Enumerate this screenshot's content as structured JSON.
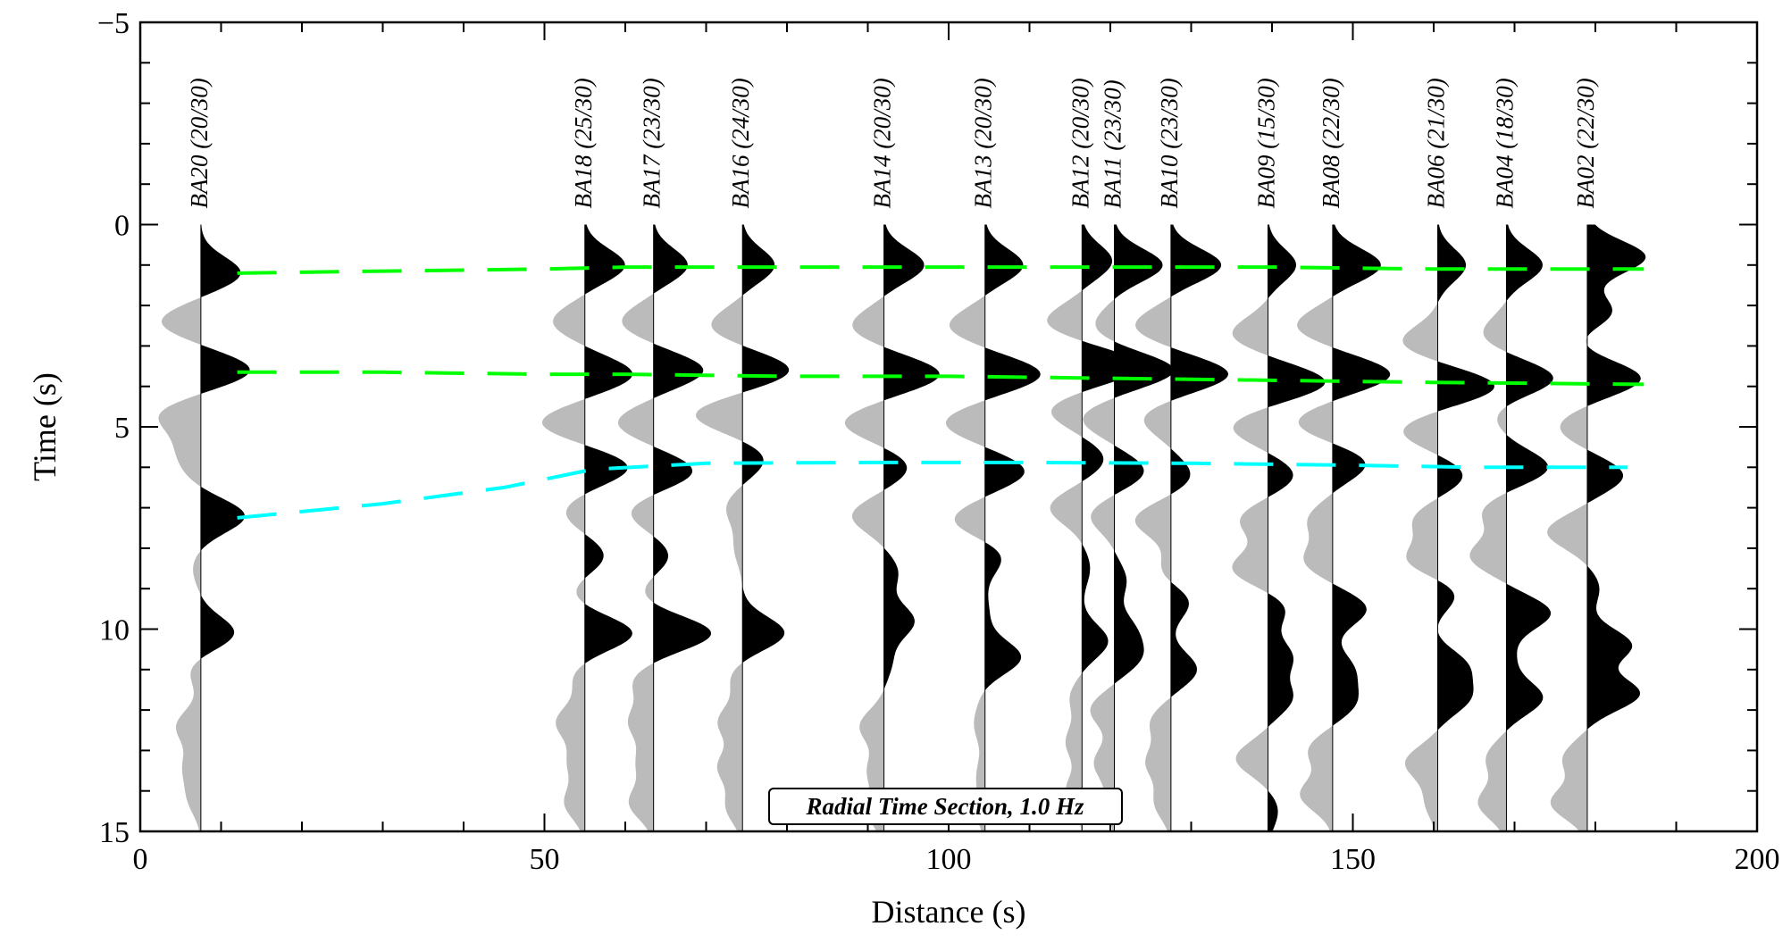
{
  "chart_data": {
    "type": "seismic-record-section",
    "title": "Radial Time Section, 1.0 Hz",
    "xlabel": "Distance (s)",
    "ylabel": "Time (s)",
    "xlim": [
      0,
      200
    ],
    "ylim": [
      -5,
      15
    ],
    "y_inverted": true,
    "x_ticks": [
      0,
      50,
      100,
      150,
      200
    ],
    "x_tick_labels": [
      "0",
      "50",
      "100",
      "150",
      "200"
    ],
    "y_ticks": [
      -5,
      0,
      5,
      10,
      15
    ],
    "y_tick_labels": [
      "−5",
      "0",
      "5",
      "10",
      "15"
    ],
    "x_minor_step": 10,
    "y_minor_step": 1,
    "positive_fill": "#000000",
    "negative_fill": "#bbbbbb",
    "traces": [
      {
        "label": "BA20 (20/30)",
        "x": 7.5,
        "peaks": [
          [
            1.2,
            1.0
          ],
          [
            2.4,
            -1.0
          ],
          [
            3.6,
            1.25
          ],
          [
            4.7,
            -1.0
          ],
          [
            5.5,
            -0.45
          ],
          [
            6.1,
            -0.3
          ],
          [
            7.2,
            1.1
          ],
          [
            8.5,
            -0.2
          ],
          [
            10.1,
            0.85
          ],
          [
            11.0,
            -0.3
          ],
          [
            12.4,
            -0.6
          ],
          [
            13.4,
            -0.4
          ],
          [
            14.2,
            -0.3
          ]
        ]
      },
      {
        "label": "BA18 (25/30)",
        "x": 55.0,
        "peaks": [
          [
            1.0,
            1.0
          ],
          [
            2.4,
            -0.8
          ],
          [
            3.7,
            1.2
          ],
          [
            4.9,
            -1.1
          ],
          [
            6.0,
            1.1
          ],
          [
            7.1,
            -0.5
          ],
          [
            8.2,
            0.5
          ],
          [
            9.1,
            -0.3
          ],
          [
            10.1,
            1.2
          ],
          [
            11.2,
            -0.3
          ],
          [
            12.3,
            -0.7
          ],
          [
            13.3,
            -0.4
          ],
          [
            14.3,
            -0.5
          ]
        ]
      },
      {
        "label": "BA17 (23/30)",
        "x": 63.5,
        "peaks": [
          [
            1.0,
            0.85
          ],
          [
            2.4,
            -0.8
          ],
          [
            3.6,
            1.25
          ],
          [
            4.9,
            -0.9
          ],
          [
            6.1,
            1.0
          ],
          [
            7.1,
            -0.6
          ],
          [
            8.2,
            0.4
          ],
          [
            9.1,
            -0.3
          ],
          [
            10.1,
            1.45
          ],
          [
            11.3,
            -0.5
          ],
          [
            12.3,
            -0.6
          ],
          [
            13.3,
            -0.4
          ],
          [
            14.3,
            -0.6
          ]
        ]
      },
      {
        "label": "BA16 (24/30)",
        "x": 74.5,
        "peaks": [
          [
            1.0,
            0.8
          ],
          [
            2.5,
            -0.8
          ],
          [
            3.6,
            1.2
          ],
          [
            4.7,
            -1.2
          ],
          [
            5.8,
            0.55
          ],
          [
            7.0,
            -0.4
          ],
          [
            8.0,
            -0.2
          ],
          [
            10.1,
            1.05
          ],
          [
            11.2,
            -0.3
          ],
          [
            12.3,
            -0.6
          ],
          [
            13.4,
            -0.6
          ],
          [
            14.4,
            -0.4
          ]
        ]
      },
      {
        "label": "BA14 (20/30)",
        "x": 92.0,
        "peaks": [
          [
            1.0,
            1.0
          ],
          [
            2.5,
            -0.8
          ],
          [
            3.7,
            1.4
          ],
          [
            4.9,
            -1.0
          ],
          [
            6.0,
            0.6
          ],
          [
            7.2,
            -0.8
          ],
          [
            8.6,
            0.35
          ],
          [
            9.8,
            0.75
          ],
          [
            10.8,
            0.2
          ],
          [
            12.4,
            -0.6
          ],
          [
            13.5,
            -0.4
          ],
          [
            14.5,
            -0.4
          ]
        ]
      },
      {
        "label": "BA13 (20/30)",
        "x": 104.5,
        "peaks": [
          [
            1.0,
            0.95
          ],
          [
            2.5,
            -0.9
          ],
          [
            3.7,
            1.4
          ],
          [
            4.9,
            -1.0
          ],
          [
            6.1,
            1.0
          ],
          [
            7.3,
            -0.8
          ],
          [
            8.2,
            0.45
          ],
          [
            9.6,
            0.1
          ],
          [
            10.7,
            0.9
          ],
          [
            11.7,
            -0.1
          ],
          [
            12.4,
            -0.25
          ],
          [
            13.6,
            -0.2
          ],
          [
            14.5,
            -0.2
          ]
        ]
      },
      {
        "label": "BA12 (20/30)",
        "x": 116.5,
        "peaks": [
          [
            0.9,
            0.75
          ],
          [
            2.4,
            -0.9
          ],
          [
            3.5,
            1.5
          ],
          [
            4.6,
            -0.8
          ],
          [
            5.8,
            0.55
          ],
          [
            7.0,
            -0.8
          ],
          [
            8.5,
            0.2
          ],
          [
            10.3,
            0.65
          ],
          [
            11.7,
            -0.3
          ],
          [
            12.8,
            -0.4
          ],
          [
            14.0,
            -0.4
          ]
        ]
      },
      {
        "label": "BA11 (23/30)",
        "x": 120.5,
        "peaks": [
          [
            1.0,
            1.2
          ],
          [
            2.5,
            -0.5
          ],
          [
            3.6,
            1.5
          ],
          [
            4.8,
            -0.8
          ],
          [
            6.1,
            0.75
          ],
          [
            7.2,
            -0.6
          ],
          [
            8.8,
            0.3
          ],
          [
            10.0,
            0.45
          ],
          [
            10.7,
            0.6
          ],
          [
            12.0,
            -0.6
          ],
          [
            13.3,
            -0.5
          ],
          [
            14.3,
            -0.2
          ]
        ]
      },
      {
        "label": "BA10 (23/30)",
        "x": 127.5,
        "peaks": [
          [
            1.0,
            1.25
          ],
          [
            2.5,
            -0.9
          ],
          [
            3.7,
            1.45
          ],
          [
            4.8,
            -0.7
          ],
          [
            6.2,
            0.5
          ],
          [
            7.3,
            -0.9
          ],
          [
            8.6,
            -0.3
          ],
          [
            9.3,
            0.5
          ],
          [
            11.0,
            0.65
          ],
          [
            12.3,
            -0.5
          ],
          [
            13.3,
            -0.6
          ],
          [
            14.3,
            -0.4
          ]
        ]
      },
      {
        "label": "BA09 (15/30)",
        "x": 139.5,
        "peaks": [
          [
            1.0,
            0.7
          ],
          [
            2.7,
            -0.9
          ],
          [
            3.9,
            1.45
          ],
          [
            5.0,
            -0.9
          ],
          [
            6.2,
            0.65
          ],
          [
            7.3,
            -0.7
          ],
          [
            8.5,
            -0.9
          ],
          [
            9.5,
            0.45
          ],
          [
            10.7,
            0.6
          ],
          [
            11.7,
            0.6
          ],
          [
            13.2,
            -0.8
          ],
          [
            14.5,
            0.25
          ]
        ]
      },
      {
        "label": "BA08 (22/30)",
        "x": 147.5,
        "peaks": [
          [
            1.0,
            1.2
          ],
          [
            2.5,
            -0.9
          ],
          [
            3.7,
            1.45
          ],
          [
            4.9,
            -0.9
          ],
          [
            5.9,
            0.85
          ],
          [
            7.3,
            -0.6
          ],
          [
            8.3,
            -0.7
          ],
          [
            9.5,
            0.85
          ],
          [
            11.0,
            0.5
          ],
          [
            11.8,
            0.55
          ],
          [
            13.0,
            -0.6
          ],
          [
            14.1,
            -0.8
          ]
        ]
      },
      {
        "label": "BA06 (21/30)",
        "x": 160.5,
        "peaks": [
          [
            1.0,
            0.7
          ],
          [
            2.9,
            -0.9
          ],
          [
            4.0,
            1.45
          ],
          [
            5.1,
            -0.9
          ],
          [
            6.2,
            0.65
          ],
          [
            7.3,
            -0.6
          ],
          [
            8.3,
            -0.8
          ],
          [
            9.1,
            0.5
          ],
          [
            10.1,
            -0.1
          ],
          [
            10.9,
            0.7
          ],
          [
            11.7,
            0.75
          ],
          [
            13.3,
            -0.8
          ],
          [
            14.3,
            -0.3
          ]
        ]
      },
      {
        "label": "BA04 (18/30)",
        "x": 169.0,
        "peaks": [
          [
            1.0,
            0.9
          ],
          [
            2.7,
            -0.6
          ],
          [
            3.8,
            1.2
          ],
          [
            4.7,
            -0.3
          ],
          [
            6.0,
            1.05
          ],
          [
            7.1,
            -0.6
          ],
          [
            8.2,
            -0.9
          ],
          [
            9.6,
            1.1
          ],
          [
            10.7,
            0.2
          ],
          [
            11.7,
            0.9
          ],
          [
            13.2,
            -0.5
          ],
          [
            14.3,
            -0.7
          ]
        ]
      },
      {
        "label": "BA02 (22/30)",
        "x": 179.0,
        "peaks": [
          [
            0.8,
            1.45
          ],
          [
            2.2,
            0.7
          ],
          [
            2.8,
            -0.3
          ],
          [
            3.8,
            1.35
          ],
          [
            5.0,
            -0.7
          ],
          [
            6.2,
            0.9
          ],
          [
            7.6,
            -1.0
          ],
          [
            9.0,
            0.3
          ],
          [
            10.4,
            1.1
          ],
          [
            11.6,
            1.3
          ],
          [
            13.2,
            -0.6
          ],
          [
            14.3,
            -0.9
          ]
        ]
      }
    ],
    "picked_phases": [
      {
        "color": "#00ff00",
        "points": [
          [
            12,
            1.2
          ],
          [
            30,
            1.15
          ],
          [
            50,
            1.1
          ],
          [
            60,
            1.05
          ],
          [
            80,
            1.05
          ],
          [
            100,
            1.05
          ],
          [
            120,
            1.05
          ],
          [
            140,
            1.05
          ],
          [
            160,
            1.1
          ],
          [
            186,
            1.1
          ]
        ]
      },
      {
        "color": "#00ff00",
        "points": [
          [
            12,
            3.65
          ],
          [
            30,
            3.65
          ],
          [
            50,
            3.7
          ],
          [
            60,
            3.7
          ],
          [
            80,
            3.75
          ],
          [
            100,
            3.75
          ],
          [
            120,
            3.8
          ],
          [
            140,
            3.85
          ],
          [
            160,
            3.9
          ],
          [
            186,
            3.95
          ]
        ]
      },
      {
        "color": "#00ffff",
        "points": [
          [
            12,
            7.25
          ],
          [
            30,
            6.9
          ],
          [
            45,
            6.5
          ],
          [
            56,
            6.05
          ],
          [
            70,
            5.9
          ],
          [
            90,
            5.88
          ],
          [
            110,
            5.88
          ],
          [
            130,
            5.9
          ],
          [
            150,
            5.95
          ],
          [
            165,
            6.0
          ],
          [
            184,
            6.0
          ]
        ]
      }
    ],
    "annotation": "Radial Time Section, 1.0 Hz"
  }
}
